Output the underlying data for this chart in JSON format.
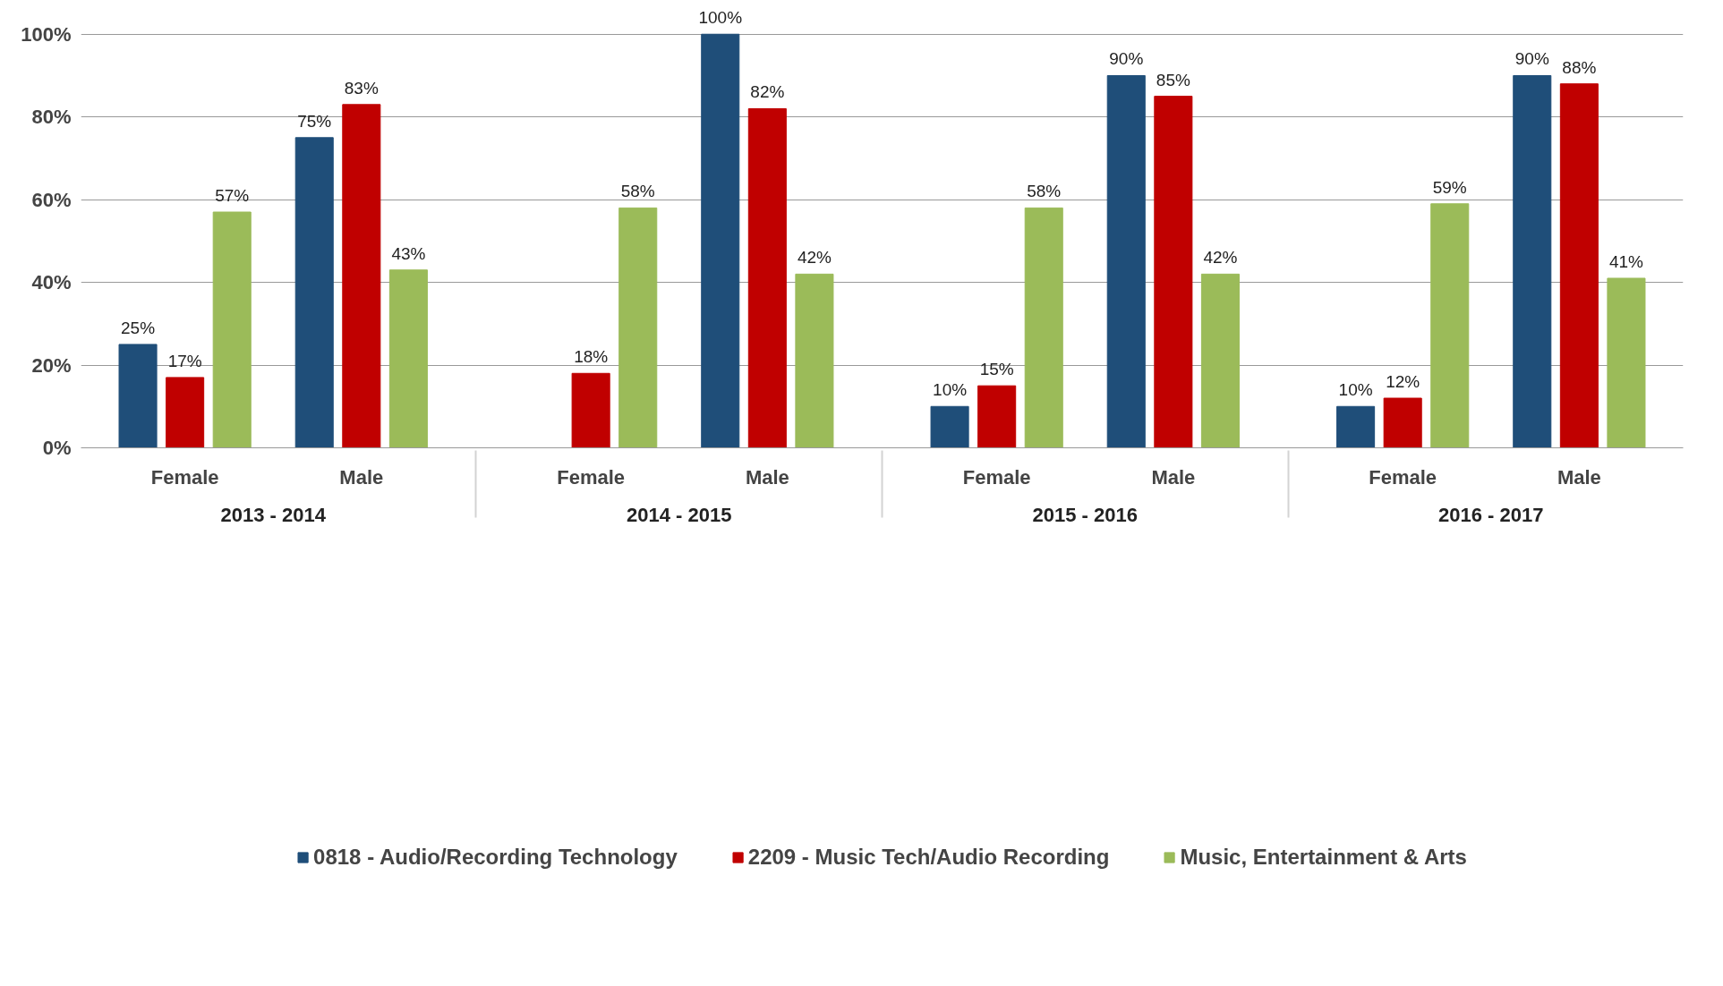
{
  "chart_data": {
    "type": "bar",
    "categories": [
      "Female",
      "Male",
      "Female",
      "Male",
      "Female",
      "Male",
      "Female",
      "Male"
    ],
    "annotations": [
      "2013 - 2014",
      "2014 - 2015",
      "2015 - 2016",
      "2016 - 2017"
    ],
    "series": [
      {
        "name": "0818 - Audio/Recording Technology",
        "color": "#1f4e79",
        "values": [
          25,
          75,
          null,
          100,
          10,
          90,
          10,
          90
        ],
        "value_labels": [
          "25%",
          "75%",
          null,
          "100%",
          "10%",
          "90%",
          "10%",
          "90%"
        ]
      },
      {
        "name": "2209 - Music Tech/Audio Recording",
        "color": "#c00000",
        "values": [
          17,
          83,
          18,
          82,
          15,
          85,
          12,
          88
        ],
        "value_labels": [
          "17%",
          "83%",
          "18%",
          "82%",
          "15%",
          "85%",
          "12%",
          "88%"
        ]
      },
      {
        "name": "Music, Entertainment & Arts",
        "color": "#9bbb59",
        "values": [
          57,
          43,
          58,
          42,
          58,
          42,
          59,
          41
        ],
        "value_labels": [
          "57%",
          "43%",
          "58%",
          "42%",
          "58%",
          "42%",
          "59%",
          "41%"
        ]
      }
    ],
    "ylim": [
      0,
      100
    ],
    "yticks": [
      {
        "value": 0,
        "label": "0%"
      },
      {
        "value": 20,
        "label": "20%"
      },
      {
        "value": 40,
        "label": "40%"
      },
      {
        "value": 60,
        "label": "60%"
      },
      {
        "value": 80,
        "label": "80%"
      },
      {
        "value": 100,
        "label": "100%"
      }
    ],
    "grid": "y",
    "legend": "bottom"
  }
}
